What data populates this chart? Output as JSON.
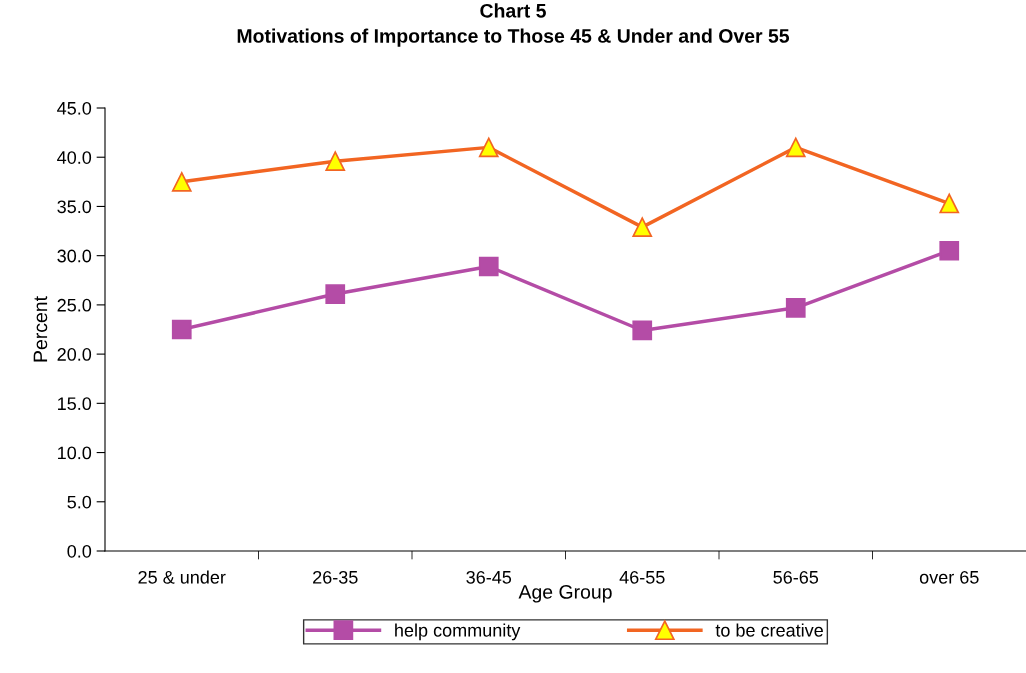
{
  "chart_data": {
    "type": "line",
    "title": "Chart 5\nMotivations of Importance to Those 45 & Under and Over 55",
    "xlabel": "Age Group",
    "ylabel": "Percent",
    "categories": [
      "25 & under",
      "26-35",
      "36-45",
      "46-55",
      "56-65",
      "over 65"
    ],
    "series": [
      {
        "name": "help community",
        "color": "#b44ca6",
        "marker": "square",
        "values": [
          22.5,
          26.1,
          28.9,
          22.4,
          24.7,
          30.5
        ]
      },
      {
        "name": "to be creative",
        "color": "#f26522",
        "marker": "triangle",
        "values": [
          37.5,
          39.6,
          41.0,
          32.9,
          41.0,
          35.3
        ]
      }
    ],
    "ylim": [
      0,
      45
    ],
    "yticks": [
      {
        "value": 0,
        "label": "0.0"
      },
      {
        "value": 5,
        "label": "5.0"
      },
      {
        "value": 10,
        "label": "10.0"
      },
      {
        "value": 15,
        "label": "15.0"
      },
      {
        "value": 20,
        "label": "20.0"
      },
      {
        "value": 25,
        "label": "25.0"
      },
      {
        "value": 30,
        "label": "30.0"
      },
      {
        "value": 35,
        "label": "35.0"
      },
      {
        "value": 40,
        "label": "40.0"
      },
      {
        "value": 45,
        "label": "45.0"
      }
    ],
    "grid": false,
    "legend": "bottom",
    "line_style": "solid"
  }
}
